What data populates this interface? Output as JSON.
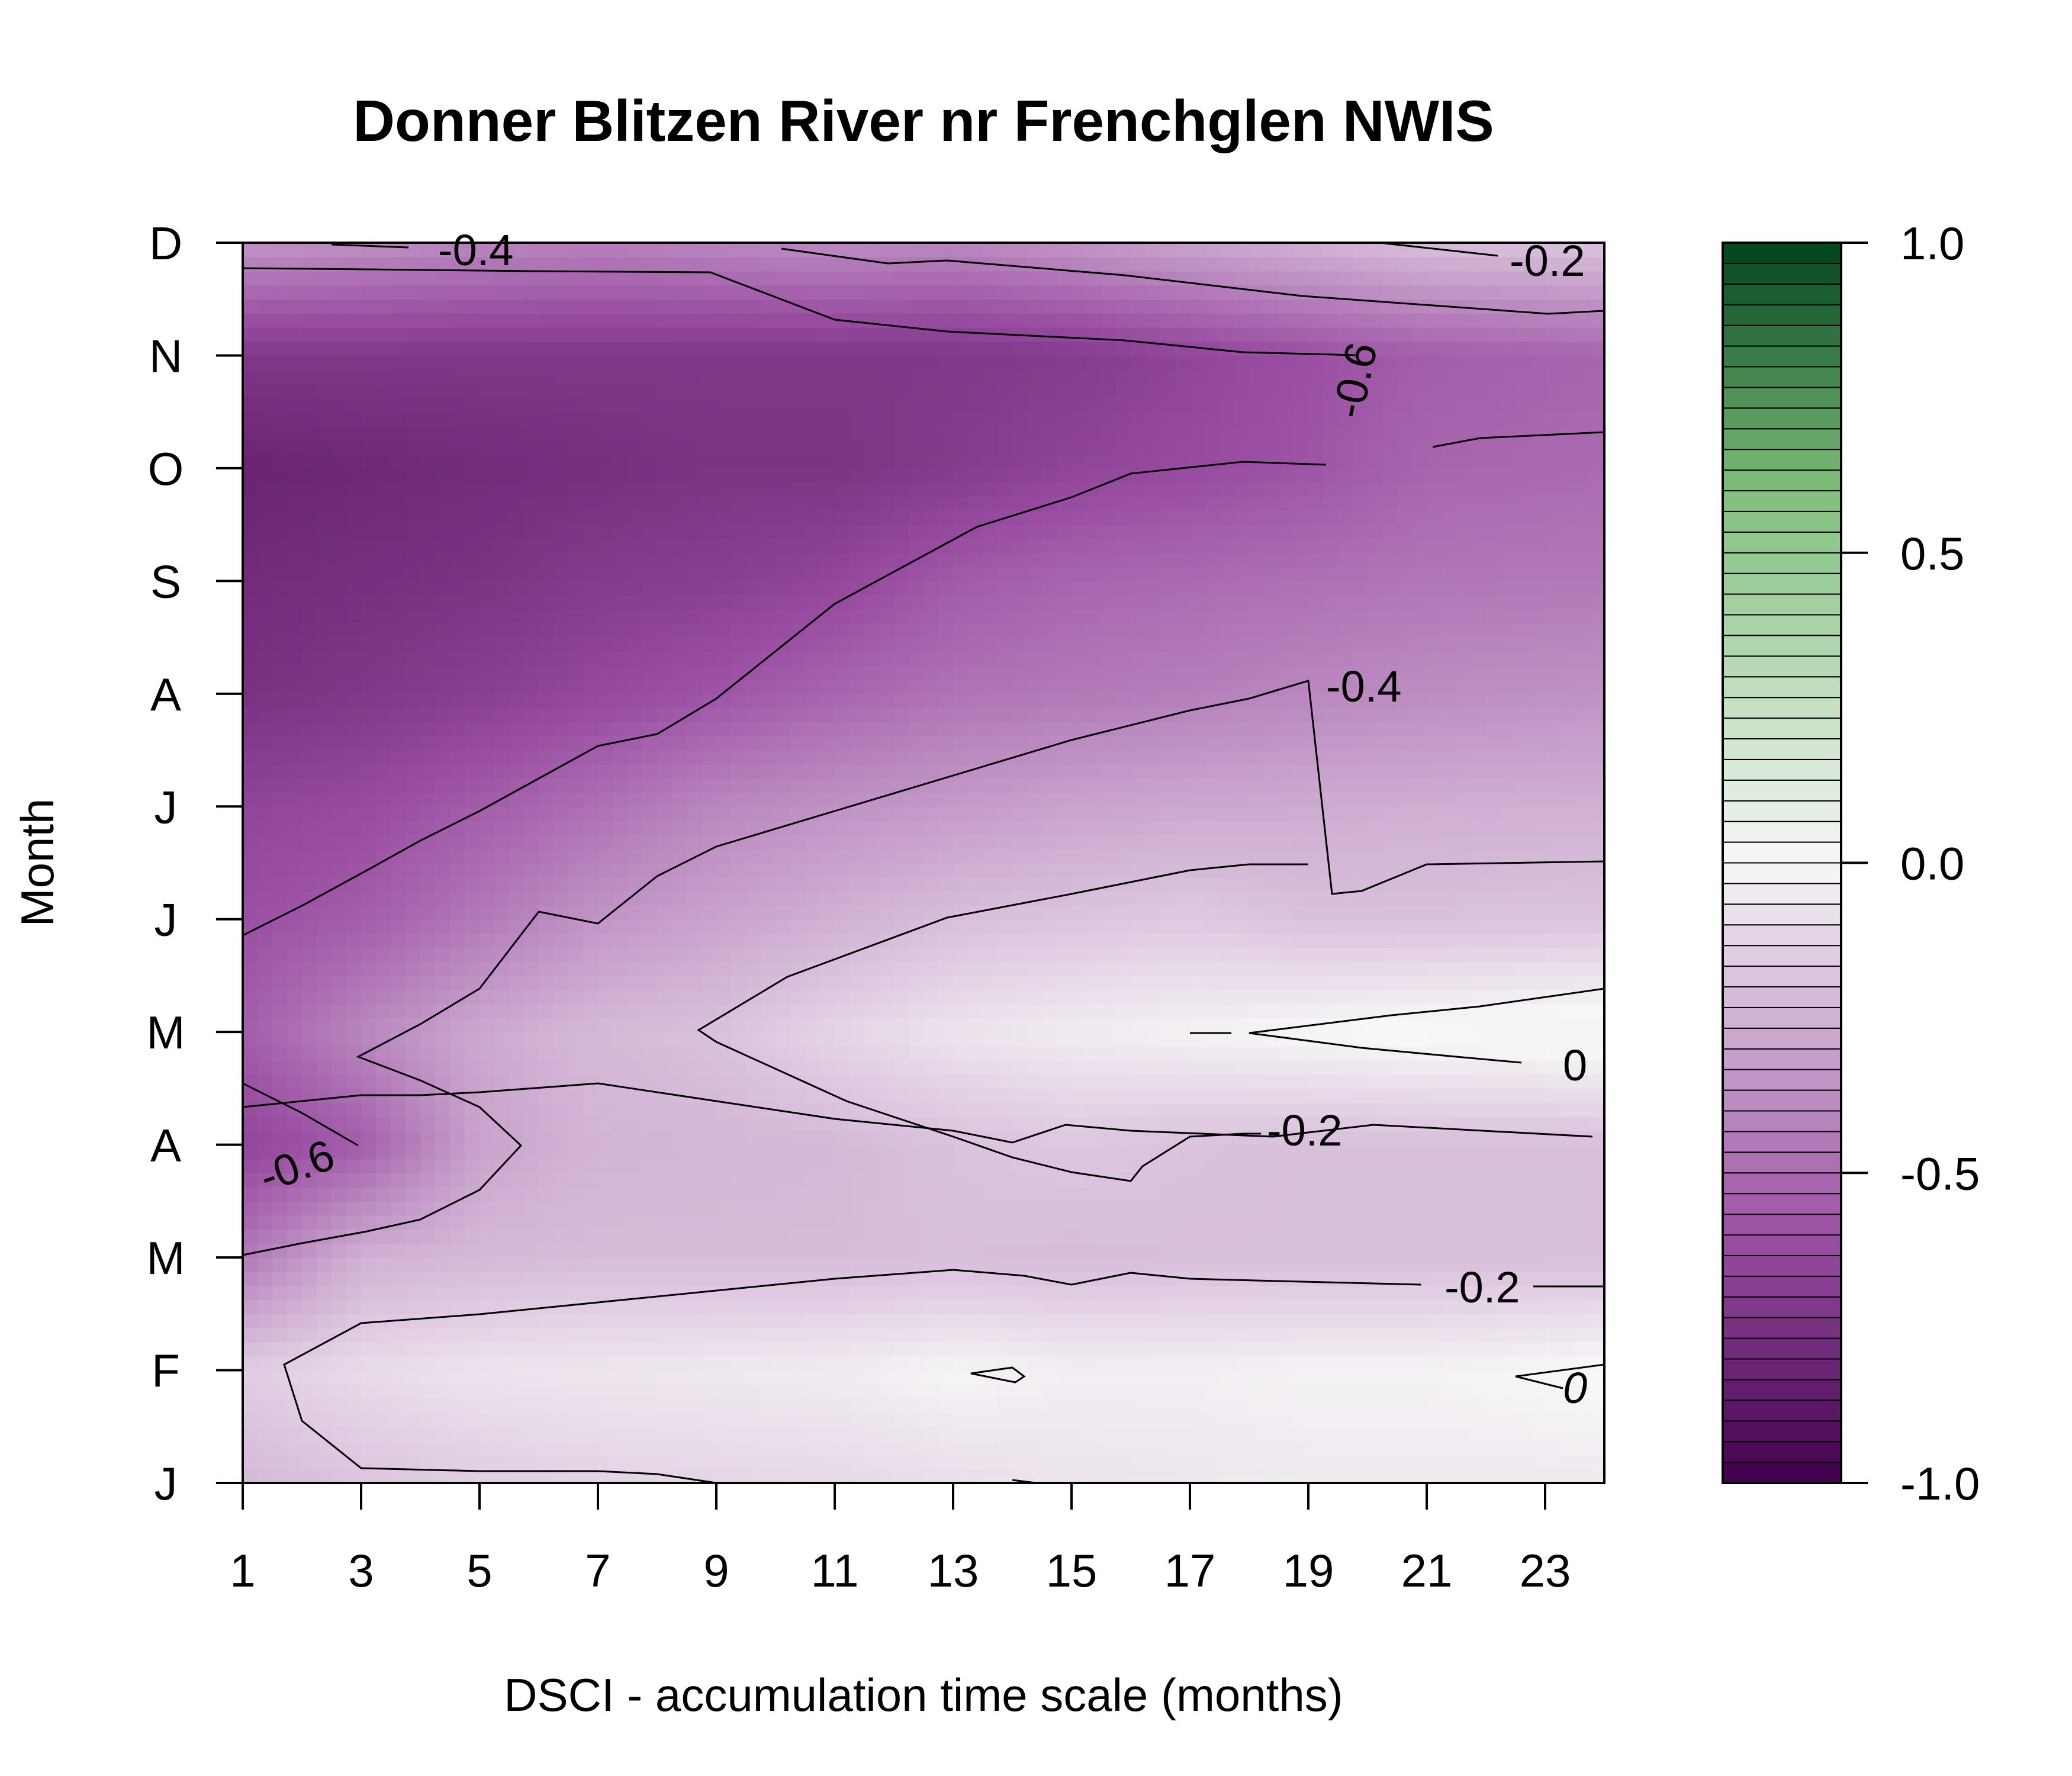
{
  "chart_data": {
    "type": "heatmap",
    "title": "Donner Blitzen River nr Frenchglen NWIS",
    "xlabel": "DSCI - accumulation time scale (months)",
    "ylabel": "Month",
    "x_ticks": [
      "1",
      "3",
      "5",
      "7",
      "9",
      "11",
      "13",
      "15",
      "17",
      "19",
      "21",
      "23"
    ],
    "y_ticks": [
      "J",
      "F",
      "M",
      "A",
      "M",
      "J",
      "J",
      "A",
      "S",
      "O",
      "N",
      "D"
    ],
    "xlim": [
      1,
      24
    ],
    "ylim": [
      1,
      12
    ],
    "x": [
      1,
      3,
      5,
      7,
      9,
      11,
      13,
      15,
      17,
      19,
      21,
      24
    ],
    "months": [
      1,
      2,
      3,
      4,
      5,
      6,
      7,
      8,
      9,
      10,
      11,
      12
    ],
    "z": [
      [
        -0.22,
        -0.18,
        -0.15,
        -0.13,
        -0.12,
        -0.11,
        -0.09,
        -0.07,
        -0.06,
        -0.05,
        -0.05,
        -0.05
      ],
      [
        -0.15,
        -0.1,
        -0.07,
        -0.06,
        -0.05,
        -0.04,
        -0.01,
        -0.03,
        -0.03,
        -0.02,
        -0.02,
        0.01
      ],
      [
        -0.45,
        -0.25,
        -0.22,
        -0.21,
        -0.21,
        -0.21,
        -0.2,
        -0.21,
        -0.2,
        -0.2,
        -0.2,
        -0.2
      ],
      [
        -0.65,
        -0.55,
        -0.3,
        -0.24,
        -0.23,
        -0.22,
        -0.19,
        -0.17,
        -0.19,
        -0.2,
        -0.2,
        -0.2
      ],
      [
        -0.55,
        -0.4,
        -0.28,
        -0.22,
        -0.19,
        -0.12,
        -0.07,
        -0.04,
        -0.02,
        0.0,
        0.02,
        0.04
      ],
      [
        -0.6,
        -0.55,
        -0.45,
        -0.35,
        -0.3,
        -0.25,
        -0.2,
        -0.18,
        -0.16,
        -0.19,
        -0.19,
        -0.18
      ],
      [
        -0.65,
        -0.62,
        -0.55,
        -0.48,
        -0.4,
        -0.36,
        -0.33,
        -0.3,
        -0.28,
        -0.27,
        -0.26,
        -0.25
      ],
      [
        -0.75,
        -0.72,
        -0.68,
        -0.63,
        -0.58,
        -0.52,
        -0.47,
        -0.45,
        -0.43,
        -0.4,
        -0.38,
        -0.36
      ],
      [
        -0.78,
        -0.76,
        -0.74,
        -0.7,
        -0.68,
        -0.64,
        -0.56,
        -0.52,
        -0.5,
        -0.48,
        -0.46,
        -0.45
      ],
      [
        -0.82,
        -0.8,
        -0.78,
        -0.76,
        -0.74,
        -0.74,
        -0.7,
        -0.65,
        -0.62,
        -0.58,
        -0.52,
        -0.5
      ],
      [
        -0.72,
        -0.72,
        -0.72,
        -0.72,
        -0.72,
        -0.72,
        -0.72,
        -0.7,
        -0.65,
        -0.6,
        -0.55,
        -0.52
      ],
      [
        -0.35,
        -0.37,
        -0.4,
        -0.42,
        -0.4,
        -0.38,
        -0.4,
        -0.35,
        -0.3,
        -0.25,
        -0.2,
        -0.18
      ]
    ],
    "zlim": [
      -1.0,
      1.0
    ],
    "colorbar_ticks": [
      "-1.0",
      "-0.5",
      "0.0",
      "0.5",
      "1.0"
    ],
    "colors": {
      "low": "#40004b",
      "mid_low": "#9b4fa3",
      "zero": "#f7f7f7",
      "mid_high": "#7fbf7b",
      "high": "#00441b"
    },
    "contour_labels": [
      "-0.4",
      "-0.2",
      "-0.6",
      "-0.4",
      "0",
      "-0.2",
      "-0.6",
      "-0.2",
      "0"
    ]
  }
}
